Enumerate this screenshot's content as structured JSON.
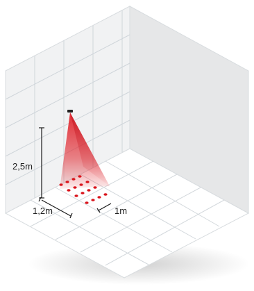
{
  "dimensions": {
    "height_label": "2,5m",
    "depth_label": "1,2m",
    "width_label": "1m"
  },
  "colors": {
    "beam": "#e0232b",
    "dots": "#d9141c",
    "wall_left": "#f1f2f3",
    "wall_right": "#e6e7e8",
    "floor": "#ffffff",
    "grid": "#cfd5da",
    "dimension_line": "#1a1a1a"
  },
  "sensor": {
    "icon": "ceiling-sensor-icon"
  }
}
